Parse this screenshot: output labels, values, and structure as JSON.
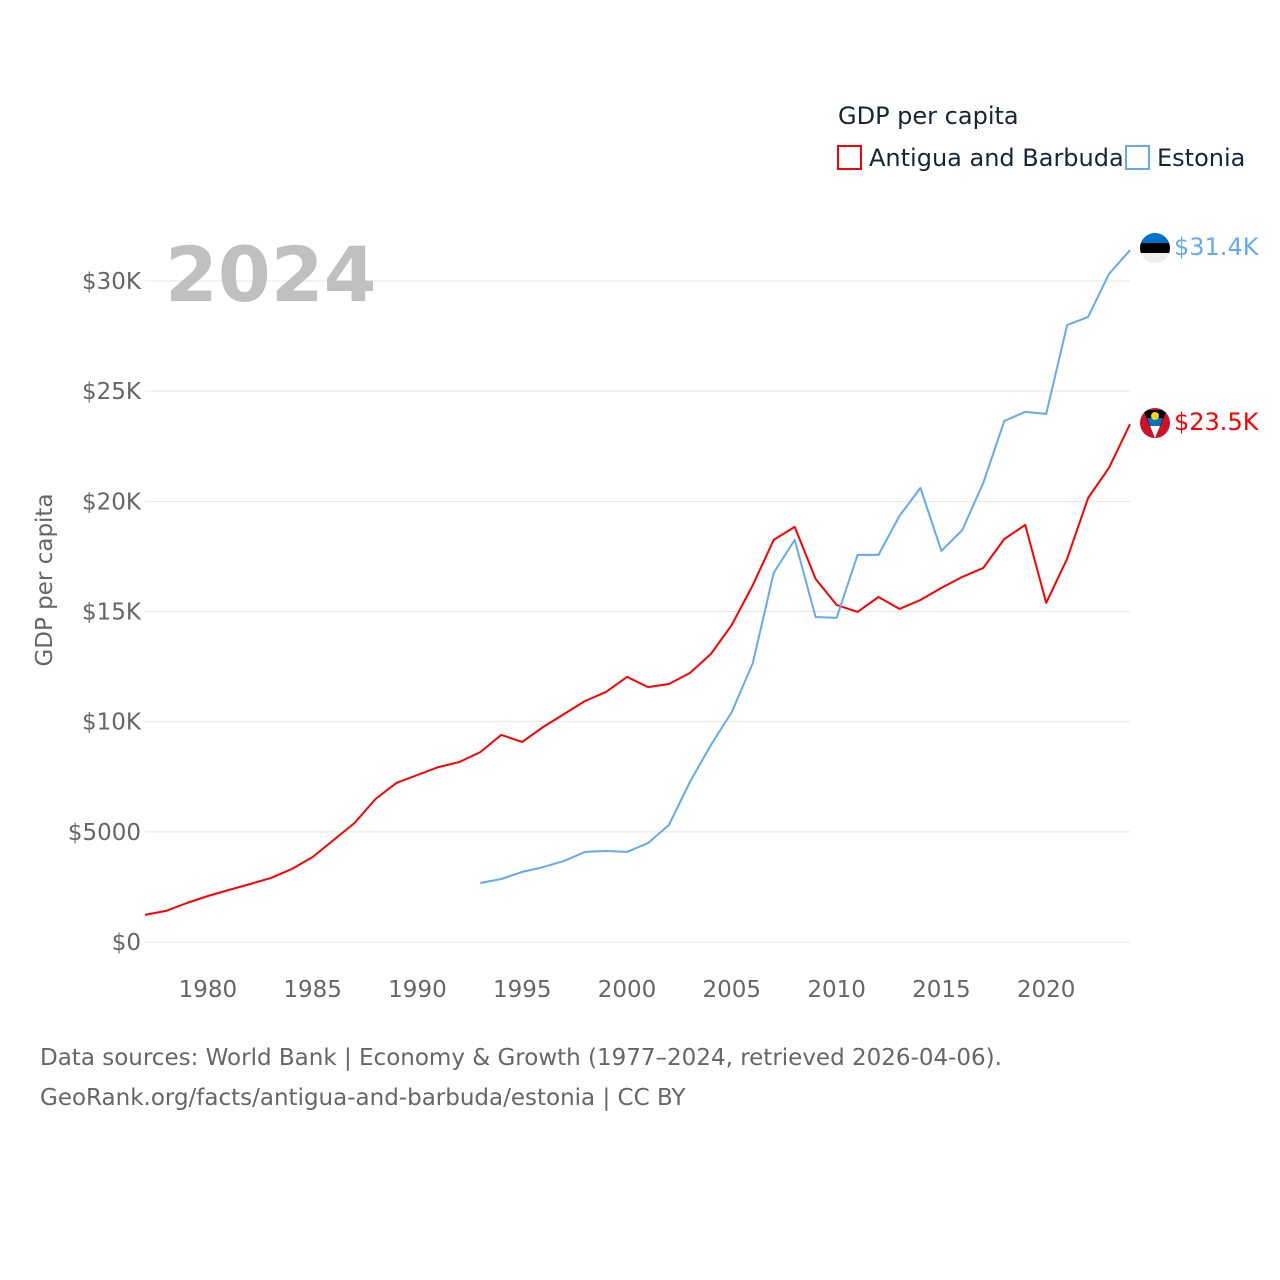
{
  "chart_data": {
    "type": "line",
    "title": "GDP per capita",
    "ylabel": "GDP per capita",
    "xlabel": "",
    "year_label": "2024",
    "xlim": [
      1977,
      2024
    ],
    "ylim": [
      0,
      30000
    ],
    "x_ticks": [
      1980,
      1985,
      1990,
      1995,
      2000,
      2005,
      2010,
      2015,
      2020
    ],
    "y_ticks": [
      {
        "value": 0,
        "label": "$0"
      },
      {
        "value": 5000,
        "label": "$5000"
      },
      {
        "value": 10000,
        "label": "$10K"
      },
      {
        "value": 15000,
        "label": "$15K"
      },
      {
        "value": 20000,
        "label": "$20K"
      },
      {
        "value": 25000,
        "label": "$25K"
      },
      {
        "value": 30000,
        "label": "$30K"
      }
    ],
    "grid": true,
    "legend_position": "top-right",
    "series": [
      {
        "name": "Antigua and Barbuda",
        "color": "#ff0000",
        "end_label": "$23.5K",
        "start_year": 1977,
        "values": [
          1230,
          1410,
          1770,
          2090,
          2360,
          2630,
          2900,
          3310,
          3860,
          4630,
          5400,
          6490,
          7220,
          7580,
          7940,
          8170,
          8620,
          9400,
          9080,
          9760,
          10350,
          10940,
          11350,
          12030,
          11570,
          11710,
          12210,
          13070,
          14390,
          16200,
          18250,
          18840,
          16480,
          15300,
          14980,
          15660,
          15120,
          15520,
          16070,
          16570,
          16980,
          18290,
          18930,
          15390,
          17390,
          20150,
          21520,
          23500
        ]
      },
      {
        "name": "Estonia",
        "color": "#66aaee",
        "end_label": "$31.4K",
        "start_year": 1993,
        "values": [
          2680,
          2860,
          3180,
          3400,
          3680,
          4090,
          4130,
          4090,
          4490,
          5310,
          7260,
          8940,
          10440,
          12660,
          16750,
          18250,
          14750,
          14710,
          17570,
          17570,
          19340,
          20610,
          17750,
          18700,
          20840,
          23650,
          24060,
          23970,
          28000,
          28370,
          30320,
          31400
        ]
      }
    ]
  },
  "footer": {
    "line1": "Data sources: World Bank | Economy & Growth (1977–2024, retrieved 2026-04-06).",
    "line2": "GeoRank.org/facts/antigua-and-barbuda/estonia | CC BY"
  }
}
